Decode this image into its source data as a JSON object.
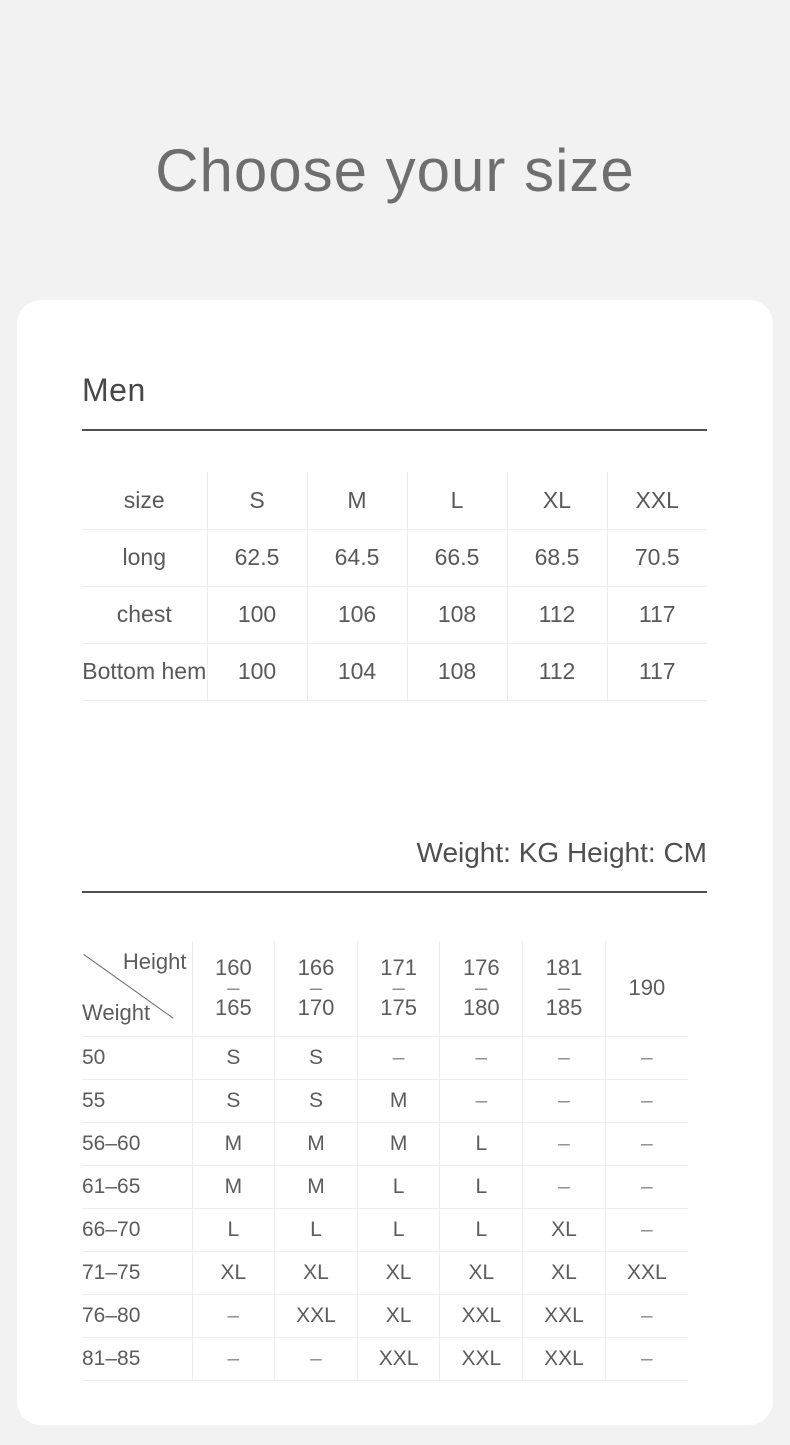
{
  "page": {
    "title": "Choose your size"
  },
  "colors": {
    "background": "#f2f2f3",
    "card": "#ffffff",
    "text": "#5c5c5c",
    "heading": "#474747",
    "heavy_rule": "#4f4f4f",
    "grid_line": "#ededed"
  },
  "men": {
    "heading": "Men",
    "table": {
      "header": [
        "size",
        "S",
        "M",
        "L",
        "XL",
        "XXL"
      ],
      "rows": [
        {
          "label": "long",
          "values": [
            "62.5",
            "64.5",
            "66.5",
            "68.5",
            "70.5"
          ]
        },
        {
          "label": "chest",
          "values": [
            "100",
            "106",
            "108",
            "112",
            "117"
          ]
        },
        {
          "label": "Bottom hem",
          "values": [
            "100",
            "104",
            "108",
            "112",
            "117"
          ]
        }
      ]
    }
  },
  "fit": {
    "units_note": "Weight: KG Height: CM",
    "matrix": {
      "corner": {
        "height_label": "Height",
        "weight_label": "Weight"
      },
      "columns": [
        {
          "from": "160",
          "dash": "–",
          "to": "165"
        },
        {
          "from": "166",
          "dash": "–",
          "to": "170"
        },
        {
          "from": "171",
          "dash": "–",
          "to": "175"
        },
        {
          "from": "176",
          "dash": "–",
          "to": "180"
        },
        {
          "from": "181",
          "dash": "–",
          "to": "185"
        },
        {
          "single": "190"
        }
      ],
      "rows": [
        {
          "weight": "50",
          "cells": [
            "S",
            "S",
            "–",
            "–",
            "–",
            "–"
          ]
        },
        {
          "weight": "55",
          "cells": [
            "S",
            "S",
            "M",
            "–",
            "–",
            "–"
          ]
        },
        {
          "weight": "56–60",
          "cells": [
            "M",
            "M",
            "M",
            "L",
            "–",
            "–"
          ]
        },
        {
          "weight": "61–65",
          "cells": [
            "M",
            "M",
            "L",
            "L",
            "–",
            "–"
          ]
        },
        {
          "weight": "66–70",
          "cells": [
            "L",
            "L",
            "L",
            "L",
            "XL",
            "–"
          ]
        },
        {
          "weight": "71–75",
          "cells": [
            "XL",
            "XL",
            "XL",
            "XL",
            "XL",
            "XXL"
          ]
        },
        {
          "weight": "76–80",
          "cells": [
            "–",
            "XXL",
            "XL",
            "XXL",
            "XXL",
            "–"
          ]
        },
        {
          "weight": "81–85",
          "cells": [
            "–",
            "–",
            "XXL",
            "XXL",
            "XXL",
            "–"
          ]
        }
      ]
    }
  }
}
